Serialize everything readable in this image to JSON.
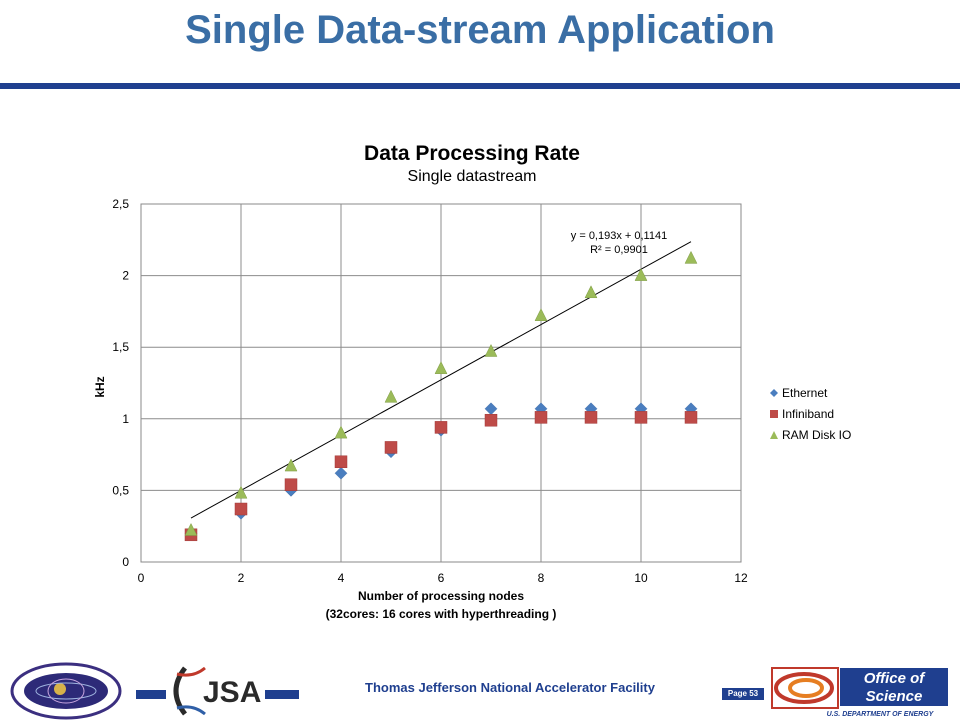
{
  "slide": {
    "title": "Single Data-stream Application",
    "footer_text": "Thomas Jefferson National Accelerator Facility",
    "page_label": "Page 53"
  },
  "logos": {
    "nuclear": "Office of Nuclear Physics — Exploring Nuclear Matter · Quarks to Stars",
    "jsa": "JSA",
    "science_top": "Office of Science",
    "science_bottom": "U.S. DEPARTMENT OF ENERGY"
  },
  "colors": {
    "title": "#3a6ea5",
    "rule": "#1f3f8f",
    "ethernet": "#4a7ebf",
    "infiniband": "#be4b48",
    "ramdisk": "#9bbb59"
  },
  "chart_data": {
    "type": "scatter",
    "title": "Data Processing Rate",
    "subtitle": "Single datastream",
    "xlabel": "Number of processing nodes",
    "xlabel2": "(32cores: 16 cores with hyperthreading )",
    "ylabel": "kHz",
    "xlim": [
      0,
      12
    ],
    "ylim": [
      0,
      2.5
    ],
    "x_ticks": [
      "0",
      "2",
      "4",
      "6",
      "8",
      "10",
      "12"
    ],
    "y_ticks": [
      "0",
      "0,5",
      "1",
      "1,5",
      "2",
      "2,5"
    ],
    "grid": true,
    "legend_position": "right",
    "series": [
      {
        "name": "Ethernet",
        "marker": "diamond",
        "x": [
          1,
          2,
          3,
          4,
          5,
          6,
          7,
          8,
          9,
          10,
          11
        ],
        "values": [
          0.2,
          0.34,
          0.5,
          0.62,
          0.77,
          0.92,
          1.07,
          1.07,
          1.07,
          1.07,
          1.07
        ]
      },
      {
        "name": "Infiniband",
        "marker": "square",
        "x": [
          1,
          2,
          3,
          4,
          5,
          6,
          7,
          8,
          9,
          10,
          11
        ],
        "values": [
          0.19,
          0.37,
          0.54,
          0.7,
          0.8,
          0.94,
          0.99,
          1.01,
          1.01,
          1.01,
          1.01
        ]
      },
      {
        "name": "RAM Disk IO",
        "marker": "triangle",
        "x": [
          1,
          2,
          3,
          4,
          5,
          6,
          7,
          8,
          9,
          10,
          11
        ],
        "values": [
          0.22,
          0.48,
          0.67,
          0.9,
          1.15,
          1.35,
          1.47,
          1.72,
          1.88,
          2.0,
          2.12
        ]
      }
    ],
    "trendline": {
      "series": "RAM Disk IO",
      "slope": 0.193,
      "intercept": 0.1141,
      "x_range": [
        1,
        11
      ],
      "equation": "y = 0,193x + 0,1141",
      "r2": "R² = 0,9901"
    }
  }
}
